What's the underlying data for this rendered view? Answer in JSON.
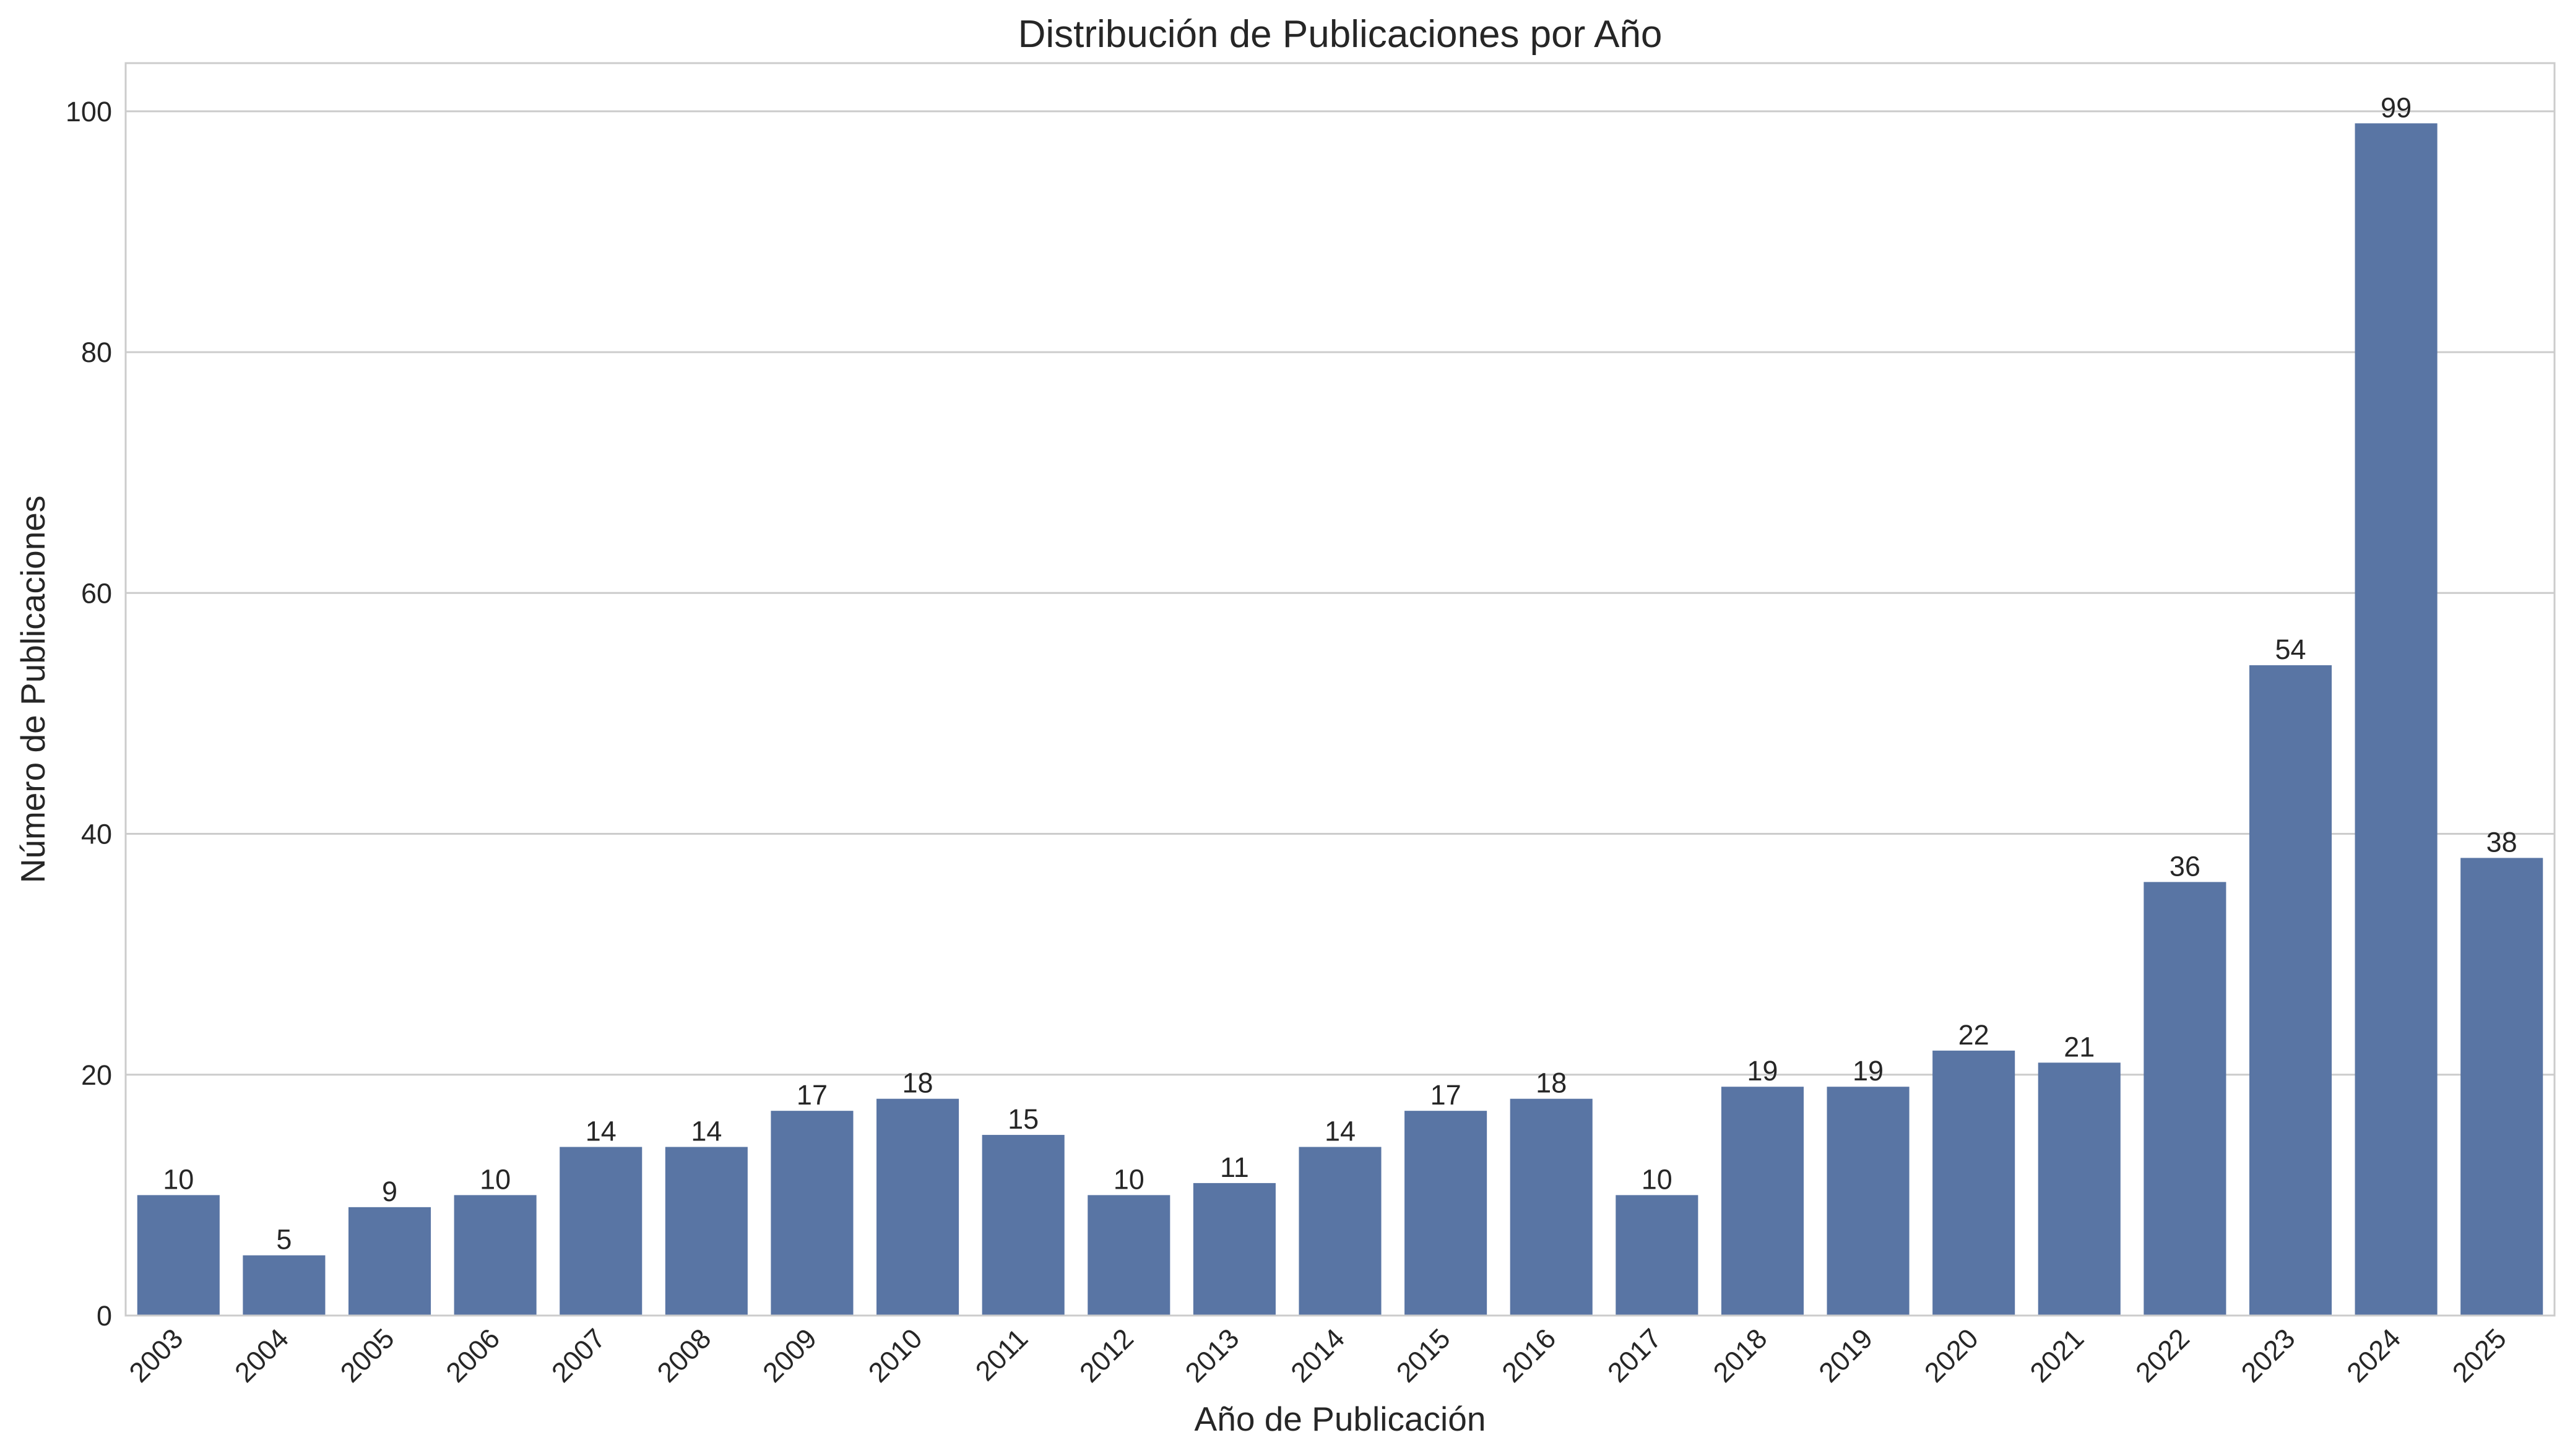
{
  "chart_data": {
    "type": "bar",
    "title": "Distribución de Publicaciones por Año",
    "xlabel": "Año de Publicación",
    "ylabel": "Número de Publicaciones",
    "categories": [
      "2003",
      "2004",
      "2005",
      "2006",
      "2007",
      "2008",
      "2009",
      "2010",
      "2011",
      "2012",
      "2013",
      "2014",
      "2015",
      "2016",
      "2017",
      "2018",
      "2019",
      "2020",
      "2021",
      "2022",
      "2023",
      "2024",
      "2025"
    ],
    "values": [
      10,
      5,
      9,
      10,
      14,
      14,
      17,
      18,
      15,
      10,
      11,
      14,
      17,
      18,
      10,
      19,
      19,
      22,
      21,
      36,
      54,
      99,
      38
    ],
    "ylim": [
      0,
      104
    ],
    "yticks": [
      0,
      20,
      40,
      60,
      80,
      100
    ],
    "grid": true,
    "bar_color": "#5975a4",
    "grid_color": "#cccccc"
  }
}
